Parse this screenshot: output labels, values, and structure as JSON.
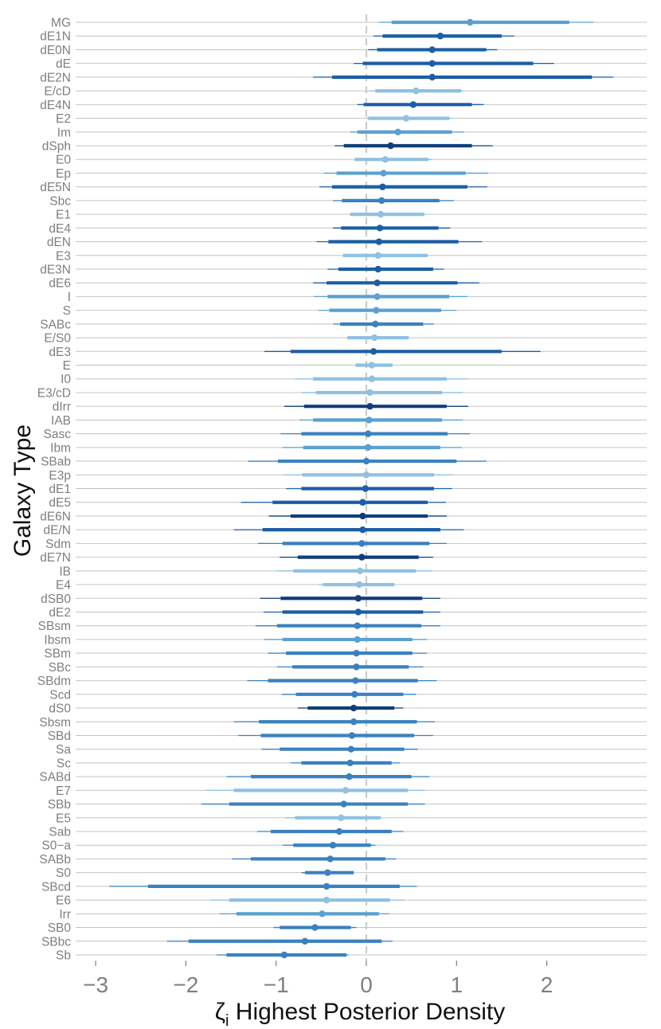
{
  "chart_data": {
    "type": "interval",
    "title": "",
    "xlabel": "ζ",
    "xlabel_sub": "i",
    "xlabel_rest": " Highest Posterior Density",
    "ylabel": "Galaxy Type",
    "xlim": [
      -3.1,
      3.05
    ],
    "xticks": [
      -3,
      -2,
      -1,
      0,
      1,
      2
    ],
    "xtick_labels": [
      "−3",
      "−2",
      "−1",
      "0",
      "1",
      "2"
    ],
    "reference_line": 0,
    "reference_line_color": "#cccccc",
    "grid_color": "#c4c4c4",
    "series": [
      {
        "label": "MG",
        "mean": 1.15,
        "inner": [
          0.28,
          2.25
        ],
        "outer": [
          0.14,
          2.52
        ],
        "color": "#5aa0d2"
      },
      {
        "label": "dE1N",
        "mean": 0.82,
        "inner": [
          0.18,
          1.5
        ],
        "outer": [
          0.08,
          1.64
        ],
        "color": "#1c5ea6"
      },
      {
        "label": "dE0N",
        "mean": 0.73,
        "inner": [
          0.12,
          1.33
        ],
        "outer": [
          0.02,
          1.45
        ],
        "color": "#1c5ea6"
      },
      {
        "label": "dE",
        "mean": 0.73,
        "inner": [
          -0.04,
          1.85
        ],
        "outer": [
          -0.14,
          2.08
        ],
        "color": "#1c5ea6"
      },
      {
        "label": "dE2N",
        "mean": 0.73,
        "inner": [
          -0.38,
          2.5
        ],
        "outer": [
          -0.59,
          2.74
        ],
        "color": "#1c5ea6"
      },
      {
        "label": "E/cD",
        "mean": 0.55,
        "inner": [
          0.1,
          1.05
        ],
        "outer": [
          0.03,
          1.08
        ],
        "color": "#8ec1e2"
      },
      {
        "label": "dE4N",
        "mean": 0.52,
        "inner": [
          -0.03,
          1.17
        ],
        "outer": [
          -0.1,
          1.3
        ],
        "color": "#1c5ea6"
      },
      {
        "label": "E2",
        "mean": 0.44,
        "inner": [
          0.02,
          0.92
        ],
        "outer": [
          0.0,
          0.94
        ],
        "color": "#8ec1e2"
      },
      {
        "label": "Im",
        "mean": 0.35,
        "inner": [
          -0.1,
          0.95
        ],
        "outer": [
          -0.18,
          1.08
        ],
        "color": "#5aa0d2"
      },
      {
        "label": "dSph",
        "mean": 0.27,
        "inner": [
          -0.25,
          1.17
        ],
        "outer": [
          -0.35,
          1.4
        ],
        "color": "#0f3e7a"
      },
      {
        "label": "E0",
        "mean": 0.21,
        "inner": [
          -0.13,
          0.69
        ],
        "outer": [
          -0.13,
          0.73
        ],
        "color": "#8ec1e2"
      },
      {
        "label": "Ep",
        "mean": 0.19,
        "inner": [
          -0.33,
          1.1
        ],
        "outer": [
          -0.47,
          1.35
        ],
        "color": "#5aa0d2"
      },
      {
        "label": "dE5N",
        "mean": 0.18,
        "inner": [
          -0.38,
          1.12
        ],
        "outer": [
          -0.52,
          1.34
        ],
        "color": "#1c5ea6"
      },
      {
        "label": "Sbc",
        "mean": 0.17,
        "inner": [
          -0.27,
          0.81
        ],
        "outer": [
          -0.37,
          0.97
        ],
        "color": "#3a81c0"
      },
      {
        "label": "E1",
        "mean": 0.16,
        "inner": [
          -0.18,
          0.64
        ],
        "outer": [
          -0.18,
          0.66
        ],
        "color": "#8ec1e2"
      },
      {
        "label": "dE4",
        "mean": 0.15,
        "inner": [
          -0.28,
          0.8
        ],
        "outer": [
          -0.37,
          0.93
        ],
        "color": "#1c5ea6"
      },
      {
        "label": "dEN",
        "mean": 0.14,
        "inner": [
          -0.42,
          1.02
        ],
        "outer": [
          -0.55,
          1.28
        ],
        "color": "#1c5ea6"
      },
      {
        "label": "E3",
        "mean": 0.13,
        "inner": [
          -0.26,
          0.68
        ],
        "outer": [
          -0.26,
          0.68
        ],
        "color": "#8ec1e2"
      },
      {
        "label": "dE3N",
        "mean": 0.13,
        "inner": [
          -0.31,
          0.74
        ],
        "outer": [
          -0.43,
          0.86
        ],
        "color": "#1c5ea6"
      },
      {
        "label": "dE6",
        "mean": 0.12,
        "inner": [
          -0.44,
          1.01
        ],
        "outer": [
          -0.59,
          1.25
        ],
        "color": "#1c5ea6"
      },
      {
        "label": "I",
        "mean": 0.12,
        "inner": [
          -0.43,
          0.92
        ],
        "outer": [
          -0.58,
          1.12
        ],
        "color": "#5aa0d2"
      },
      {
        "label": "S",
        "mean": 0.11,
        "inner": [
          -0.41,
          0.83
        ],
        "outer": [
          -0.53,
          1.0
        ],
        "color": "#5aa0d2"
      },
      {
        "label": "SABc",
        "mean": 0.1,
        "inner": [
          -0.29,
          0.63
        ],
        "outer": [
          -0.37,
          0.75
        ],
        "color": "#3a81c0"
      },
      {
        "label": "E/S0",
        "mean": 0.09,
        "inner": [
          -0.21,
          0.47
        ],
        "outer": [
          -0.21,
          0.47
        ],
        "color": "#8ec1e2"
      },
      {
        "label": "dE3",
        "mean": 0.08,
        "inner": [
          -0.84,
          1.5
        ],
        "outer": [
          -1.13,
          1.93
        ],
        "color": "#1c5ea6"
      },
      {
        "label": "E",
        "mean": 0.06,
        "inner": [
          -0.12,
          0.29
        ],
        "outer": [
          -0.12,
          0.29
        ],
        "color": "#8ec1e2"
      },
      {
        "label": "I0",
        "mean": 0.06,
        "inner": [
          -0.59,
          0.89
        ],
        "outer": [
          -0.79,
          1.13
        ],
        "color": "#8ec1e2"
      },
      {
        "label": "E3/cD",
        "mean": 0.04,
        "inner": [
          -0.56,
          0.84
        ],
        "outer": [
          -0.72,
          1.07
        ],
        "color": "#8ec1e2"
      },
      {
        "label": "dIrr",
        "mean": 0.04,
        "inner": [
          -0.69,
          0.89
        ],
        "outer": [
          -0.91,
          1.13
        ],
        "color": "#0f3e7a"
      },
      {
        "label": "IAB",
        "mean": 0.03,
        "inner": [
          -0.59,
          0.84
        ],
        "outer": [
          -0.74,
          1.07
        ],
        "color": "#5aa0d2"
      },
      {
        "label": "Sasc",
        "mean": 0.02,
        "inner": [
          -0.72,
          0.9
        ],
        "outer": [
          -0.95,
          1.15
        ],
        "color": "#3a81c0"
      },
      {
        "label": "Ibm",
        "mean": 0.02,
        "inner": [
          -0.7,
          0.82
        ],
        "outer": [
          -0.93,
          1.06
        ],
        "color": "#5aa0d2"
      },
      {
        "label": "SBab",
        "mean": 0.0,
        "inner": [
          -0.98,
          1.0
        ],
        "outer": [
          -1.31,
          1.33
        ],
        "color": "#3a81c0"
      },
      {
        "label": "E3p",
        "mean": 0.0,
        "inner": [
          -0.71,
          0.75
        ],
        "outer": [
          -0.92,
          0.96
        ],
        "color": "#8ec1e2"
      },
      {
        "label": "dE1",
        "mean": -0.01,
        "inner": [
          -0.72,
          0.75
        ],
        "outer": [
          -0.89,
          0.95
        ],
        "color": "#1c5ea6"
      },
      {
        "label": "dE5",
        "mean": -0.04,
        "inner": [
          -1.04,
          0.68
        ],
        "outer": [
          -1.39,
          0.88
        ],
        "color": "#1c5ea6"
      },
      {
        "label": "dE6N",
        "mean": -0.04,
        "inner": [
          -0.84,
          0.68
        ],
        "outer": [
          -1.08,
          0.89
        ],
        "color": "#0f3e7a"
      },
      {
        "label": "dE/N",
        "mean": -0.04,
        "inner": [
          -1.15,
          0.82
        ],
        "outer": [
          -1.47,
          1.08
        ],
        "color": "#1c5ea6"
      },
      {
        "label": "Sdm",
        "mean": -0.05,
        "inner": [
          -0.93,
          0.7
        ],
        "outer": [
          -1.2,
          0.89
        ],
        "color": "#3a81c0"
      },
      {
        "label": "dE7N",
        "mean": -0.05,
        "inner": [
          -0.76,
          0.58
        ],
        "outer": [
          -0.96,
          0.74
        ],
        "color": "#0f3e7a"
      },
      {
        "label": "IB",
        "mean": -0.07,
        "inner": [
          -0.81,
          0.55
        ],
        "outer": [
          -1.0,
          0.73
        ],
        "color": "#8ec1e2"
      },
      {
        "label": "E4",
        "mean": -0.08,
        "inner": [
          -0.48,
          0.31
        ],
        "outer": [
          -0.53,
          0.31
        ],
        "color": "#8ec1e2"
      },
      {
        "label": "dSB0",
        "mean": -0.09,
        "inner": [
          -0.95,
          0.62
        ],
        "outer": [
          -1.18,
          0.82
        ],
        "color": "#0f3e7a"
      },
      {
        "label": "dE2",
        "mean": -0.09,
        "inner": [
          -0.93,
          0.63
        ],
        "outer": [
          -1.14,
          0.82
        ],
        "color": "#1c5ea6"
      },
      {
        "label": "SBsm",
        "mean": -0.1,
        "inner": [
          -0.99,
          0.61
        ],
        "outer": [
          -1.23,
          0.82
        ],
        "color": "#3a81c0"
      },
      {
        "label": "Ibsm",
        "mean": -0.1,
        "inner": [
          -0.93,
          0.51
        ],
        "outer": [
          -1.13,
          0.67
        ],
        "color": "#5aa0d2"
      },
      {
        "label": "SBm",
        "mean": -0.11,
        "inner": [
          -0.89,
          0.51
        ],
        "outer": [
          -1.09,
          0.67
        ],
        "color": "#3a81c0"
      },
      {
        "label": "SBc",
        "mean": -0.11,
        "inner": [
          -0.82,
          0.47
        ],
        "outer": [
          -0.99,
          0.63
        ],
        "color": "#3a81c0"
      },
      {
        "label": "SBdm",
        "mean": -0.12,
        "inner": [
          -1.09,
          0.57
        ],
        "outer": [
          -1.32,
          0.78
        ],
        "color": "#3a81c0"
      },
      {
        "label": "Scd",
        "mean": -0.13,
        "inner": [
          -0.78,
          0.41
        ],
        "outer": [
          -0.94,
          0.55
        ],
        "color": "#3a81c0"
      },
      {
        "label": "dS0",
        "mean": -0.14,
        "inner": [
          -0.65,
          0.31
        ],
        "outer": [
          -0.76,
          0.41
        ],
        "color": "#0f3e7a"
      },
      {
        "label": "Sbsm",
        "mean": -0.14,
        "inner": [
          -1.19,
          0.56
        ],
        "outer": [
          -1.47,
          0.76
        ],
        "color": "#3a81c0"
      },
      {
        "label": "SBd",
        "mean": -0.16,
        "inner": [
          -1.17,
          0.53
        ],
        "outer": [
          -1.42,
          0.74
        ],
        "color": "#3a81c0"
      },
      {
        "label": "Sa",
        "mean": -0.17,
        "inner": [
          -0.96,
          0.42
        ],
        "outer": [
          -1.16,
          0.57
        ],
        "color": "#3a81c0"
      },
      {
        "label": "Sc",
        "mean": -0.18,
        "inner": [
          -0.72,
          0.28
        ],
        "outer": [
          -0.84,
          0.37
        ],
        "color": "#3a81c0"
      },
      {
        "label": "SABd",
        "mean": -0.19,
        "inner": [
          -1.28,
          0.5
        ],
        "outer": [
          -1.55,
          0.7
        ],
        "color": "#3a81c0"
      },
      {
        "label": "E7",
        "mean": -0.23,
        "inner": [
          -1.47,
          0.46
        ],
        "outer": [
          -1.78,
          0.65
        ],
        "color": "#8ec1e2"
      },
      {
        "label": "SBb",
        "mean": -0.25,
        "inner": [
          -1.52,
          0.46
        ],
        "outer": [
          -1.83,
          0.65
        ],
        "color": "#3a81c0"
      },
      {
        "label": "E5",
        "mean": -0.28,
        "inner": [
          -0.79,
          0.16
        ],
        "outer": [
          -0.9,
          0.16
        ],
        "color": "#8ec1e2"
      },
      {
        "label": "Sab",
        "mean": -0.3,
        "inner": [
          -1.06,
          0.28
        ],
        "outer": [
          -1.21,
          0.41
        ],
        "color": "#3a81c0"
      },
      {
        "label": "S0−a",
        "mean": -0.37,
        "inner": [
          -0.81,
          0.05
        ],
        "outer": [
          -0.93,
          0.1
        ],
        "color": "#3a81c0"
      },
      {
        "label": "SABb",
        "mean": -0.4,
        "inner": [
          -1.28,
          0.21
        ],
        "outer": [
          -1.49,
          0.33
        ],
        "color": "#3a81c0"
      },
      {
        "label": "S0",
        "mean": -0.43,
        "inner": [
          -0.68,
          -0.14
        ],
        "outer": [
          -0.72,
          -0.14
        ],
        "color": "#3a81c0"
      },
      {
        "label": "SBcd",
        "mean": -0.44,
        "inner": [
          -2.42,
          0.37
        ],
        "outer": [
          -2.85,
          0.56
        ],
        "color": "#3a81c0"
      },
      {
        "label": "E6",
        "mean": -0.44,
        "inner": [
          -1.52,
          0.26
        ],
        "outer": [
          -1.73,
          0.43
        ],
        "color": "#8ec1e2"
      },
      {
        "label": "Irr",
        "mean": -0.49,
        "inner": [
          -1.44,
          0.14
        ],
        "outer": [
          -1.63,
          0.26
        ],
        "color": "#5aa0d2"
      },
      {
        "label": "SB0",
        "mean": -0.57,
        "inner": [
          -0.96,
          -0.17
        ],
        "outer": [
          -1.03,
          -0.11
        ],
        "color": "#3a81c0"
      },
      {
        "label": "SBbc",
        "mean": -0.68,
        "inner": [
          -1.97,
          0.17
        ],
        "outer": [
          -2.21,
          0.29
        ],
        "color": "#3a81c0"
      },
      {
        "label": "Sb",
        "mean": -0.91,
        "inner": [
          -1.55,
          -0.22
        ],
        "outer": [
          -1.66,
          -0.2
        ],
        "color": "#3a81c0"
      }
    ]
  }
}
